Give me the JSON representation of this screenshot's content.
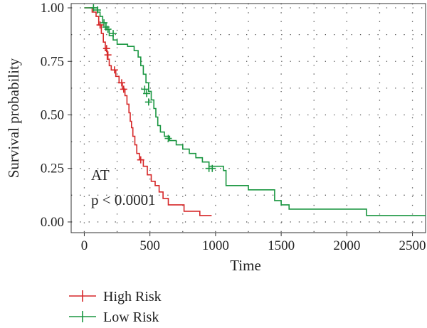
{
  "chart_data": {
    "type": "line",
    "title": "",
    "xlabel": "Time",
    "ylabel": "Survival probability",
    "xlim": [
      -100,
      2600
    ],
    "ylim": [
      -0.05,
      1.02
    ],
    "x_ticks": [
      0,
      500,
      1000,
      1500,
      2000,
      2500
    ],
    "y_ticks": [
      0.0,
      0.25,
      0.5,
      0.75,
      1.0
    ],
    "x_tick_labels": [
      "0",
      "500",
      "1000",
      "1500",
      "2000",
      "2500"
    ],
    "y_tick_labels": [
      "0.00",
      "0.25",
      "0.50",
      "0.75",
      "1.00"
    ],
    "grid": "dotted",
    "annotations": [
      "AT",
      "p < 0.0001"
    ],
    "legend": {
      "placement": "bottom-left"
    },
    "series": [
      {
        "name": "High Risk",
        "color": "#d62728",
        "steps": [
          [
            0,
            1.0
          ],
          [
            60,
            0.98
          ],
          [
            90,
            0.96
          ],
          [
            110,
            0.92
          ],
          [
            130,
            0.88
          ],
          [
            145,
            0.84
          ],
          [
            160,
            0.8
          ],
          [
            175,
            0.76
          ],
          [
            190,
            0.73
          ],
          [
            205,
            0.71
          ],
          [
            240,
            0.68
          ],
          [
            265,
            0.65
          ],
          [
            290,
            0.62
          ],
          [
            310,
            0.59
          ],
          [
            325,
            0.55
          ],
          [
            340,
            0.51
          ],
          [
            350,
            0.47
          ],
          [
            360,
            0.44
          ],
          [
            370,
            0.4
          ],
          [
            385,
            0.36
          ],
          [
            400,
            0.32
          ],
          [
            420,
            0.29
          ],
          [
            450,
            0.26
          ],
          [
            480,
            0.22
          ],
          [
            510,
            0.19
          ],
          [
            540,
            0.17
          ],
          [
            570,
            0.14
          ],
          [
            600,
            0.11
          ],
          [
            640,
            0.08
          ],
          [
            760,
            0.05
          ],
          [
            880,
            0.03
          ],
          [
            970,
            0.03
          ]
        ],
        "censors": [
          [
            120,
            0.92
          ],
          [
            170,
            0.81
          ],
          [
            180,
            0.78
          ],
          [
            230,
            0.71
          ],
          [
            285,
            0.65
          ],
          [
            300,
            0.62
          ],
          [
            430,
            0.29
          ]
        ]
      },
      {
        "name": "Low Risk",
        "color": "#1a9641",
        "steps": [
          [
            0,
            1.0
          ],
          [
            100,
            0.98
          ],
          [
            120,
            0.96
          ],
          [
            140,
            0.93
          ],
          [
            165,
            0.9
          ],
          [
            190,
            0.87
          ],
          [
            220,
            0.85
          ],
          [
            250,
            0.83
          ],
          [
            330,
            0.82
          ],
          [
            380,
            0.8
          ],
          [
            410,
            0.77
          ],
          [
            430,
            0.73
          ],
          [
            450,
            0.69
          ],
          [
            470,
            0.65
          ],
          [
            490,
            0.61
          ],
          [
            510,
            0.57
          ],
          [
            530,
            0.53
          ],
          [
            545,
            0.49
          ],
          [
            560,
            0.45
          ],
          [
            580,
            0.42
          ],
          [
            610,
            0.4
          ],
          [
            650,
            0.38
          ],
          [
            700,
            0.36
          ],
          [
            750,
            0.34
          ],
          [
            800,
            0.32
          ],
          [
            850,
            0.3
          ],
          [
            900,
            0.28
          ],
          [
            950,
            0.26
          ],
          [
            1060,
            0.24
          ],
          [
            1080,
            0.17
          ],
          [
            1250,
            0.15
          ],
          [
            1450,
            0.1
          ],
          [
            1500,
            0.08
          ],
          [
            1560,
            0.06
          ],
          [
            2150,
            0.03
          ],
          [
            2600,
            0.03
          ]
        ],
        "censors": [
          [
            70,
            1.0
          ],
          [
            100,
            0.99
          ],
          [
            150,
            0.93
          ],
          [
            165,
            0.91
          ],
          [
            180,
            0.9
          ],
          [
            220,
            0.88
          ],
          [
            460,
            0.62
          ],
          [
            475,
            0.6
          ],
          [
            490,
            0.56
          ],
          [
            640,
            0.39
          ],
          [
            950,
            0.25
          ],
          [
            975,
            0.25
          ]
        ]
      }
    ]
  }
}
